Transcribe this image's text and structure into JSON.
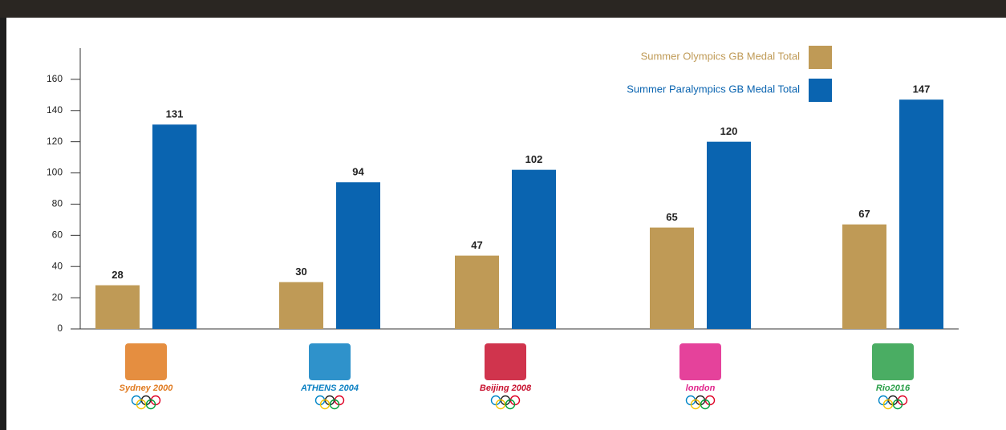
{
  "chart_data": {
    "type": "bar",
    "categories": [
      "Sydney 2000",
      "ATHENS 2004",
      "Beijing 2008",
      "london",
      "Rio2016"
    ],
    "series": [
      {
        "name": "Summer Olympics GB Medal Total",
        "color": "#bf9a56",
        "values": [
          28,
          30,
          47,
          65,
          67
        ]
      },
      {
        "name": "Summer Paralympics GB Medal Total",
        "color": "#0a64b0",
        "values": [
          131,
          94,
          102,
          120,
          147
        ]
      }
    ],
    "ylim": [
      0,
      180
    ],
    "yticks": [
      0,
      20,
      40,
      60,
      80,
      100,
      120,
      140,
      160
    ],
    "legend": "top-right"
  }
}
